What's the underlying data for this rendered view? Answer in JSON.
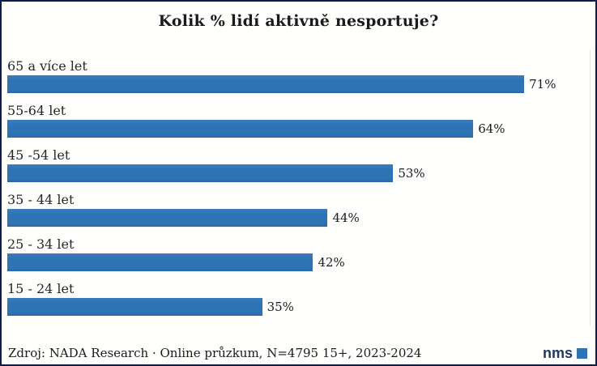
{
  "page": {
    "title": "Kolik % lidí aktivně nesportuje?",
    "footer": {
      "source": "Zdroj: NADA Research · Online průzkum, N=4795 15+, 2023-2024",
      "logo_text": "nms"
    }
  },
  "colors": {
    "bar": "#2e74b5",
    "page_border": "#0d1b4d",
    "logo_text": "#1f3864",
    "logo_square": "#2e74b5"
  },
  "chart_data": {
    "type": "bar",
    "orientation": "horizontal",
    "title": "Kolik % lidí aktivně nesportuje?",
    "categories": [
      "65 a více let",
      "55-64 let",
      "45 -54 let",
      "35 - 44 let",
      "25 - 34 let",
      "15 - 24 let"
    ],
    "values": [
      71,
      64,
      53,
      44,
      42,
      35
    ],
    "value_labels": [
      "71%",
      "64%",
      "53%",
      "44%",
      "42%",
      "35%"
    ],
    "xlabel": "",
    "ylabel": "",
    "xlim": [
      0,
      80
    ],
    "grid": false,
    "legend": null,
    "bar_label_position": "outside-end"
  }
}
